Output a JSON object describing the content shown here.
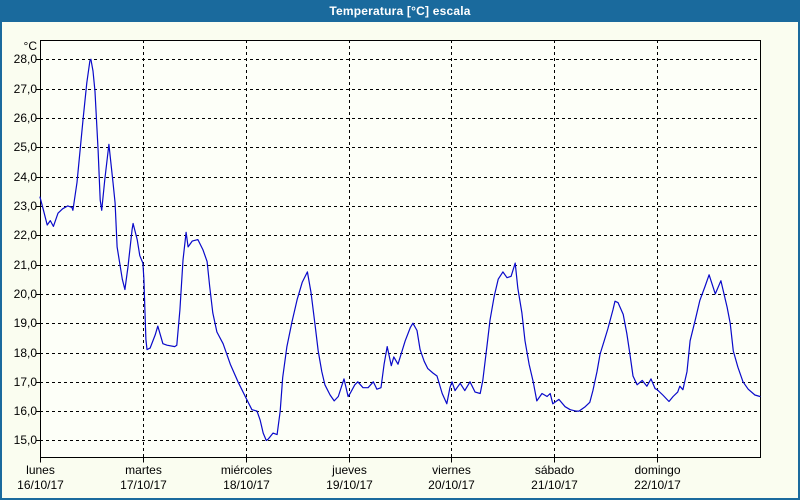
{
  "window": {
    "title": "Temperatura [°C] escala"
  },
  "colors": {
    "titlebar_bg": "#1A6A9D",
    "frame_border": "#1A6A9D",
    "page_bg": "#FAFDF0",
    "plot_bg": "#FDFFF8",
    "line": "#0A0ACA",
    "grid": "#000000",
    "title_text": "#FFFFFF"
  },
  "chart_data": {
    "type": "line",
    "title": "Temperatura [°C] escala",
    "xlabel": "",
    "ylabel": "°C",
    "grid": "dashed-both-axes",
    "legend": "none",
    "y_axis": {
      "unit_label": "°C",
      "tick_values": [
        28,
        27,
        26,
        25,
        24,
        23,
        22,
        21,
        20,
        19,
        18,
        17,
        16,
        15
      ],
      "tick_labels": [
        "28,0",
        "27,0",
        "26,0",
        "25,0",
        "24,0",
        "23,0",
        "22,0",
        "21,0",
        "20,0",
        "19,0",
        "18,0",
        "17,0",
        "16,0",
        "15,0"
      ],
      "ylim": [
        14.35,
        28.66
      ]
    },
    "x_axis": {
      "days": [
        {
          "name": "lunes",
          "date": "16/10/17"
        },
        {
          "name": "martes",
          "date": "17/10/17"
        },
        {
          "name": "miércoles",
          "date": "18/10/17"
        },
        {
          "name": "jueves",
          "date": "19/10/17"
        },
        {
          "name": "viernes",
          "date": "20/10/17"
        },
        {
          "name": "sábado",
          "date": "21/10/17"
        },
        {
          "name": "domingo",
          "date": "22/10/17"
        }
      ],
      "xlim_days": [
        0,
        7.01
      ]
    },
    "series": [
      {
        "name": "Temperatura",
        "points": [
          [
            0,
            23.3
          ],
          [
            0.03,
            22.9
          ],
          [
            0.07,
            22.35
          ],
          [
            0.1,
            22.5
          ],
          [
            0.13,
            22.3
          ],
          [
            0.175,
            22.75
          ],
          [
            0.22,
            22.9
          ],
          [
            0.27,
            23.0
          ],
          [
            0.31,
            22.95
          ],
          [
            0.32,
            22.85
          ],
          [
            0.36,
            23.8
          ],
          [
            0.39,
            24.9
          ],
          [
            0.42,
            26.0
          ],
          [
            0.455,
            27.2
          ],
          [
            0.485,
            27.95
          ],
          [
            0.495,
            28.0
          ],
          [
            0.515,
            27.6
          ],
          [
            0.535,
            26.9
          ],
          [
            0.565,
            24.9
          ],
          [
            0.585,
            23.2
          ],
          [
            0.6,
            22.85
          ],
          [
            0.63,
            23.9
          ],
          [
            0.67,
            25.1
          ],
          [
            0.71,
            23.8
          ],
          [
            0.73,
            23.1
          ],
          [
            0.75,
            21.6
          ],
          [
            0.8,
            20.5
          ],
          [
            0.825,
            20.15
          ],
          [
            0.855,
            20.9
          ],
          [
            0.895,
            22.2
          ],
          [
            0.905,
            22.4
          ],
          [
            0.945,
            21.85
          ],
          [
            0.97,
            21.3
          ],
          [
            1.0,
            21.05
          ],
          [
            1.01,
            20.5
          ],
          [
            1.02,
            19.45
          ],
          [
            1.03,
            18.45
          ],
          [
            1.04,
            18.1
          ],
          [
            1.07,
            18.15
          ],
          [
            1.12,
            18.6
          ],
          [
            1.145,
            18.9
          ],
          [
            1.195,
            18.3
          ],
          [
            1.235,
            18.25
          ],
          [
            1.31,
            18.2
          ],
          [
            1.33,
            18.25
          ],
          [
            1.36,
            19.45
          ],
          [
            1.39,
            21.15
          ],
          [
            1.42,
            22.1
          ],
          [
            1.44,
            21.6
          ],
          [
            1.48,
            21.8
          ],
          [
            1.535,
            21.85
          ],
          [
            1.585,
            21.5
          ],
          [
            1.625,
            21.1
          ],
          [
            1.65,
            20.25
          ],
          [
            1.68,
            19.35
          ],
          [
            1.72,
            18.7
          ],
          [
            1.78,
            18.3
          ],
          [
            1.85,
            17.6
          ],
          [
            1.925,
            17.0
          ],
          [
            2.01,
            16.4
          ],
          [
            2.06,
            16.05
          ],
          [
            2.11,
            16.0
          ],
          [
            2.14,
            15.7
          ],
          [
            2.17,
            15.25
          ],
          [
            2.2,
            15.0
          ],
          [
            2.22,
            15.05
          ],
          [
            2.265,
            15.25
          ],
          [
            2.305,
            15.2
          ],
          [
            2.335,
            16.0
          ],
          [
            2.36,
            17.15
          ],
          [
            2.4,
            18.2
          ],
          [
            2.45,
            19.05
          ],
          [
            2.5,
            19.8
          ],
          [
            2.55,
            20.4
          ],
          [
            2.6,
            20.75
          ],
          [
            2.635,
            20.05
          ],
          [
            2.675,
            18.9
          ],
          [
            2.705,
            18.05
          ],
          [
            2.74,
            17.35
          ],
          [
            2.77,
            16.9
          ],
          [
            2.82,
            16.55
          ],
          [
            2.86,
            16.35
          ],
          [
            2.9,
            16.5
          ],
          [
            2.955,
            17.1
          ],
          [
            2.995,
            16.5
          ],
          [
            3.015,
            16.6
          ],
          [
            3.06,
            16.9
          ],
          [
            3.09,
            17.0
          ],
          [
            3.14,
            16.8
          ],
          [
            3.19,
            16.8
          ],
          [
            3.24,
            17.0
          ],
          [
            3.275,
            16.75
          ],
          [
            3.315,
            16.8
          ],
          [
            3.345,
            17.6
          ],
          [
            3.375,
            18.2
          ],
          [
            3.415,
            17.55
          ],
          [
            3.44,
            17.85
          ],
          [
            3.48,
            17.6
          ],
          [
            3.55,
            18.4
          ],
          [
            3.6,
            18.85
          ],
          [
            3.625,
            19.0
          ],
          [
            3.665,
            18.75
          ],
          [
            3.695,
            18.1
          ],
          [
            3.735,
            17.7
          ],
          [
            3.77,
            17.45
          ],
          [
            3.82,
            17.3
          ],
          [
            3.86,
            17.2
          ],
          [
            3.91,
            16.6
          ],
          [
            3.955,
            16.25
          ],
          [
            3.985,
            16.8
          ],
          [
            4.005,
            17.0
          ],
          [
            4.035,
            16.7
          ],
          [
            4.085,
            16.95
          ],
          [
            4.13,
            16.7
          ],
          [
            4.18,
            17.0
          ],
          [
            4.23,
            16.65
          ],
          [
            4.28,
            16.6
          ],
          [
            4.305,
            17.05
          ],
          [
            4.345,
            18.2
          ],
          [
            4.375,
            19.1
          ],
          [
            4.415,
            19.9
          ],
          [
            4.455,
            20.5
          ],
          [
            4.5,
            20.75
          ],
          [
            4.54,
            20.55
          ],
          [
            4.58,
            20.6
          ],
          [
            4.62,
            21.05
          ],
          [
            4.645,
            20.2
          ],
          [
            4.685,
            19.35
          ],
          [
            4.715,
            18.4
          ],
          [
            4.755,
            17.6
          ],
          [
            4.795,
            17.0
          ],
          [
            4.83,
            16.35
          ],
          [
            4.88,
            16.6
          ],
          [
            4.93,
            16.5
          ],
          [
            4.96,
            16.6
          ],
          [
            4.985,
            16.25
          ],
          [
            5.045,
            16.4
          ],
          [
            5.105,
            16.15
          ],
          [
            5.155,
            16.05
          ],
          [
            5.21,
            16.0
          ],
          [
            5.24,
            16.0
          ],
          [
            5.3,
            16.15
          ],
          [
            5.345,
            16.3
          ],
          [
            5.375,
            16.7
          ],
          [
            5.415,
            17.35
          ],
          [
            5.445,
            17.95
          ],
          [
            5.485,
            18.4
          ],
          [
            5.52,
            18.8
          ],
          [
            5.57,
            19.45
          ],
          [
            5.59,
            19.75
          ],
          [
            5.62,
            19.7
          ],
          [
            5.67,
            19.3
          ],
          [
            5.705,
            18.65
          ],
          [
            5.735,
            17.95
          ],
          [
            5.765,
            17.2
          ],
          [
            5.805,
            16.9
          ],
          [
            5.855,
            17.05
          ],
          [
            5.9,
            16.85
          ],
          [
            5.94,
            17.1
          ],
          [
            5.98,
            16.77
          ],
          [
            6.0,
            16.73
          ],
          [
            6.055,
            16.55
          ],
          [
            6.115,
            16.33
          ],
          [
            6.155,
            16.5
          ],
          [
            6.2,
            16.65
          ],
          [
            6.22,
            16.85
          ],
          [
            6.25,
            16.73
          ],
          [
            6.29,
            17.35
          ],
          [
            6.32,
            18.4
          ],
          [
            6.37,
            19.1
          ],
          [
            6.415,
            19.77
          ],
          [
            6.465,
            20.25
          ],
          [
            6.505,
            20.65
          ],
          [
            6.565,
            20.0
          ],
          [
            6.62,
            20.45
          ],
          [
            6.68,
            19.55
          ],
          [
            6.71,
            19.0
          ],
          [
            6.74,
            18.05
          ],
          [
            6.785,
            17.5
          ],
          [
            6.835,
            17.0
          ],
          [
            6.885,
            16.75
          ],
          [
            6.95,
            16.55
          ],
          [
            7.0,
            16.5
          ]
        ]
      }
    ]
  }
}
